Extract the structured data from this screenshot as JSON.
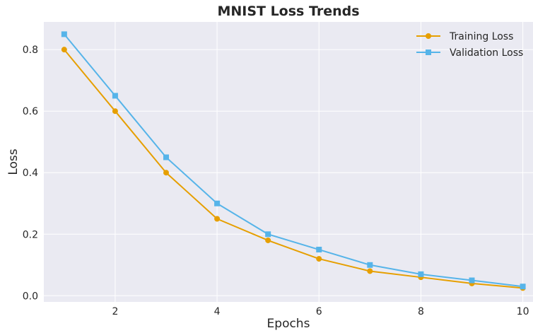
{
  "chart_data": {
    "type": "line",
    "title": "MNIST Loss Trends",
    "xlabel": "Epochs",
    "ylabel": "Loss",
    "xlim": [
      0.6,
      10.2
    ],
    "ylim": [
      -0.02,
      0.89
    ],
    "xticks": [
      2,
      4,
      6,
      8,
      10
    ],
    "yticks": [
      0.0,
      0.2,
      0.4,
      0.6,
      0.8
    ],
    "xtick_labels": [
      "2",
      "4",
      "6",
      "8",
      "10"
    ],
    "ytick_labels": [
      "0.0",
      "0.2",
      "0.4",
      "0.6",
      "0.8"
    ],
    "grid": true,
    "legend_position": "top-right",
    "x": [
      1,
      2,
      3,
      4,
      5,
      6,
      7,
      8,
      9,
      10
    ],
    "series": [
      {
        "name": "Training Loss",
        "color": "#e69f00",
        "marker": "circle",
        "values": [
          0.8,
          0.6,
          0.4,
          0.25,
          0.18,
          0.12,
          0.08,
          0.06,
          0.04,
          0.025
        ]
      },
      {
        "name": "Validation Loss",
        "color": "#56b4e9",
        "marker": "square",
        "values": [
          0.85,
          0.65,
          0.45,
          0.3,
          0.2,
          0.15,
          0.1,
          0.07,
          0.05,
          0.03
        ]
      }
    ]
  },
  "colors": {
    "plot_background": "#eaeaf2",
    "grid": "#ffffff",
    "text": "#262626"
  }
}
